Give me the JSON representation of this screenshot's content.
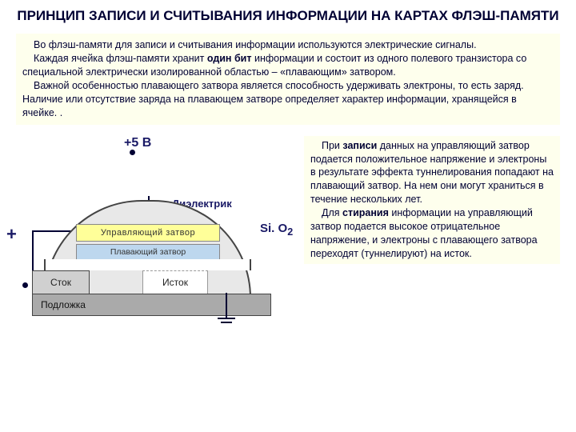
{
  "title": "ПРИНЦИП ЗАПИСИ И СЧИТЫВАНИЯ ИНФОРМАЦИИ НА КАРТАХ ФЛЭШ-ПАМЯТИ",
  "intro": {
    "p1": "Во флэш-памяти для записи и считывания информации используются электрические сигналы.",
    "p2a": "Каждая ячейка флэш-памяти хранит ",
    "p2b": "один бит",
    "p2c": " информации и состоит из одного полевого транзистора со специальной электрически изолированной областью – «плавающим» затвором.",
    "p3": "Важной особенностью плавающего затвора является способность удерживать электроны, то есть заряд. Наличие или отсутствие заряда на плавающем затворе определяет характер информации, хранящейся в ячейке. ."
  },
  "diagram": {
    "voltage_label": "+5 В",
    "plus_label": "+",
    "sio2_label": "Si. O",
    "sio2_sub": "2",
    "dielectric": "Диэлектрик",
    "control_gate": "Управляющий  затвор",
    "floating_gate": "Плавающий  затвор",
    "stock": "Сток",
    "istok": "Исток",
    "substrate": "Подложка",
    "colors": {
      "control_gate_bg": "#ffff99",
      "floating_gate_bg": "#bdd7ee",
      "stock_bg": "#d0d0d0",
      "substrate_bg": "#aaaaaa",
      "arc_bg": "#e8e8e8",
      "intro_bg": "#feffed",
      "text_color": "#000033"
    }
  },
  "right": {
    "p1a": "При ",
    "p1b": "записи",
    "p1c": " данных на управляющий затвор подается положительное напряжение и электроны в результате эффекта туннелирования попадают на плавающий затвор. На нем они могут храниться в течение нескольких лет.",
    "p2a": "Для ",
    "p2b": "стирания",
    "p2c": " информации на управляющий затвор подается высокое отрицательное напряжение, и электроны с плавающего затвора переходят (туннелируют) на исток."
  }
}
